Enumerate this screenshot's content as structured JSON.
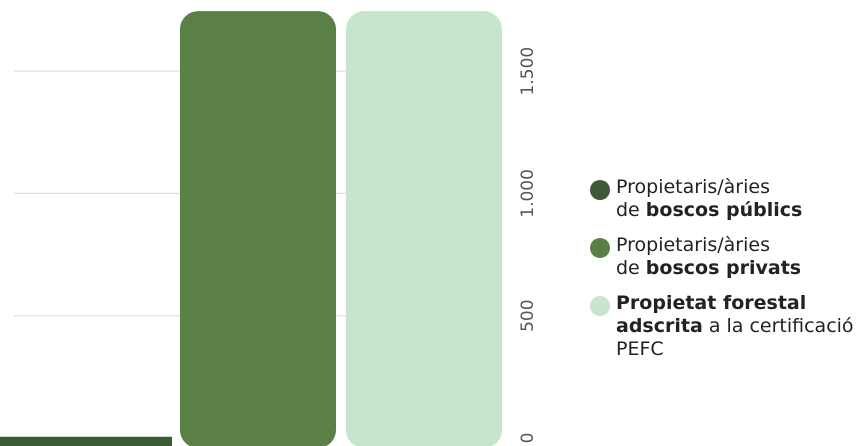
{
  "colors": {
    "public": "#3c5a36",
    "private": "#5a8045",
    "certified": "#c5e6cc",
    "grid": "#d9d9d9",
    "tick": "#555555"
  },
  "chart_data": {
    "type": "bar",
    "title": "",
    "xlabel": "",
    "ylabel": "",
    "y_axis_position": "right",
    "tick_label_orientation": "vertical",
    "y_ticks": [
      0,
      500,
      1000,
      1500
    ],
    "y_tick_labels": [
      "0",
      "500",
      "1.000",
      "1.500"
    ],
    "ylim": [
      0,
      1750
    ],
    "grid": true,
    "legend_position": "right",
    "series": [
      {
        "name_parts": [
          "Propietaris/àries",
          "de ",
          "boscos públics",
          ""
        ],
        "value": 5,
        "color": "#3c5a36"
      },
      {
        "name_parts": [
          "Propietaris/àries",
          "de ",
          "boscos privats",
          ""
        ],
        "value": 1745,
        "color": "#5a8045"
      },
      {
        "name_parts": [
          "Propietat forestal",
          "",
          "adscrita",
          " a la certificació PEFC"
        ],
        "value": 1745,
        "color": "#c5e6cc"
      }
    ]
  },
  "legend": {
    "items": [
      {
        "line1": "Propietaris/àries",
        "pre": "de ",
        "bold": "boscos públics",
        "post": ""
      },
      {
        "line1": "",
        "pre": "",
        "bold": "",
        "post": ""
      },
      {
        "line1": "",
        "pre": "",
        "bold": "",
        "post": ""
      }
    ]
  }
}
